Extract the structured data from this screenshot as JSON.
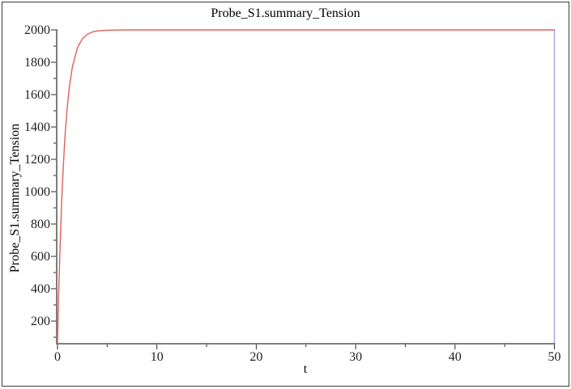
{
  "window": {
    "background": "#ffffff",
    "border_color": "#3a3a3a"
  },
  "chart_data": {
    "type": "line",
    "title": "Probe_S1.summary_Tension",
    "xlabel": "t",
    "ylabel": "Probe_S1.summary_Tension",
    "xlim": [
      0,
      50
    ],
    "ylim": [
      60,
      2000
    ],
    "grid": false,
    "legend": "none",
    "x_ticks_major": [
      0,
      10,
      20,
      30,
      40,
      50
    ],
    "x_ticks_minor": [
      5,
      15,
      25,
      35,
      45
    ],
    "y_ticks_major": [
      200,
      400,
      600,
      800,
      1000,
      1200,
      1400,
      1600,
      1800,
      2000
    ],
    "y_ticks_minor": [
      100,
      300,
      500,
      700,
      900,
      1100,
      1300,
      1500,
      1700,
      1900
    ],
    "colors": {
      "curve": "#e25e5e",
      "end_line": "#a9aee4",
      "axis": "#7d7d7d",
      "tick": "#2a2a2a",
      "text": "#000000"
    },
    "series": [
      {
        "name": "Probe_S1.summary_Tension",
        "color": "#e25e5e",
        "points": [
          [
            0,
            60
          ],
          [
            0.05,
            194
          ],
          [
            0.1,
            318
          ],
          [
            0.15,
            434
          ],
          [
            0.2,
            542
          ],
          [
            0.3,
            736
          ],
          [
            0.4,
            904
          ],
          [
            0.5,
            1050
          ],
          [
            0.6,
            1177
          ],
          [
            0.7,
            1288
          ],
          [
            0.8,
            1381
          ],
          [
            1,
            1535
          ],
          [
            1.2,
            1651
          ],
          [
            1.5,
            1772
          ],
          [
            2,
            1889
          ],
          [
            2.5,
            1946
          ],
          [
            3,
            1973
          ],
          [
            3.5,
            1987
          ],
          [
            4,
            1994
          ],
          [
            5,
            1998
          ],
          [
            6,
            1999
          ],
          [
            7,
            2000
          ],
          [
            8,
            2000
          ],
          [
            10,
            2000
          ],
          [
            15,
            2000
          ],
          [
            20,
            2000
          ],
          [
            25,
            2000
          ],
          [
            30,
            2000
          ],
          [
            35,
            2000
          ],
          [
            40,
            2000
          ],
          [
            45,
            2000
          ],
          [
            50,
            2000
          ]
        ]
      }
    ],
    "end_marker": {
      "x": 50,
      "y_from": 60,
      "y_to": 2000,
      "color": "#a9aee4"
    }
  }
}
